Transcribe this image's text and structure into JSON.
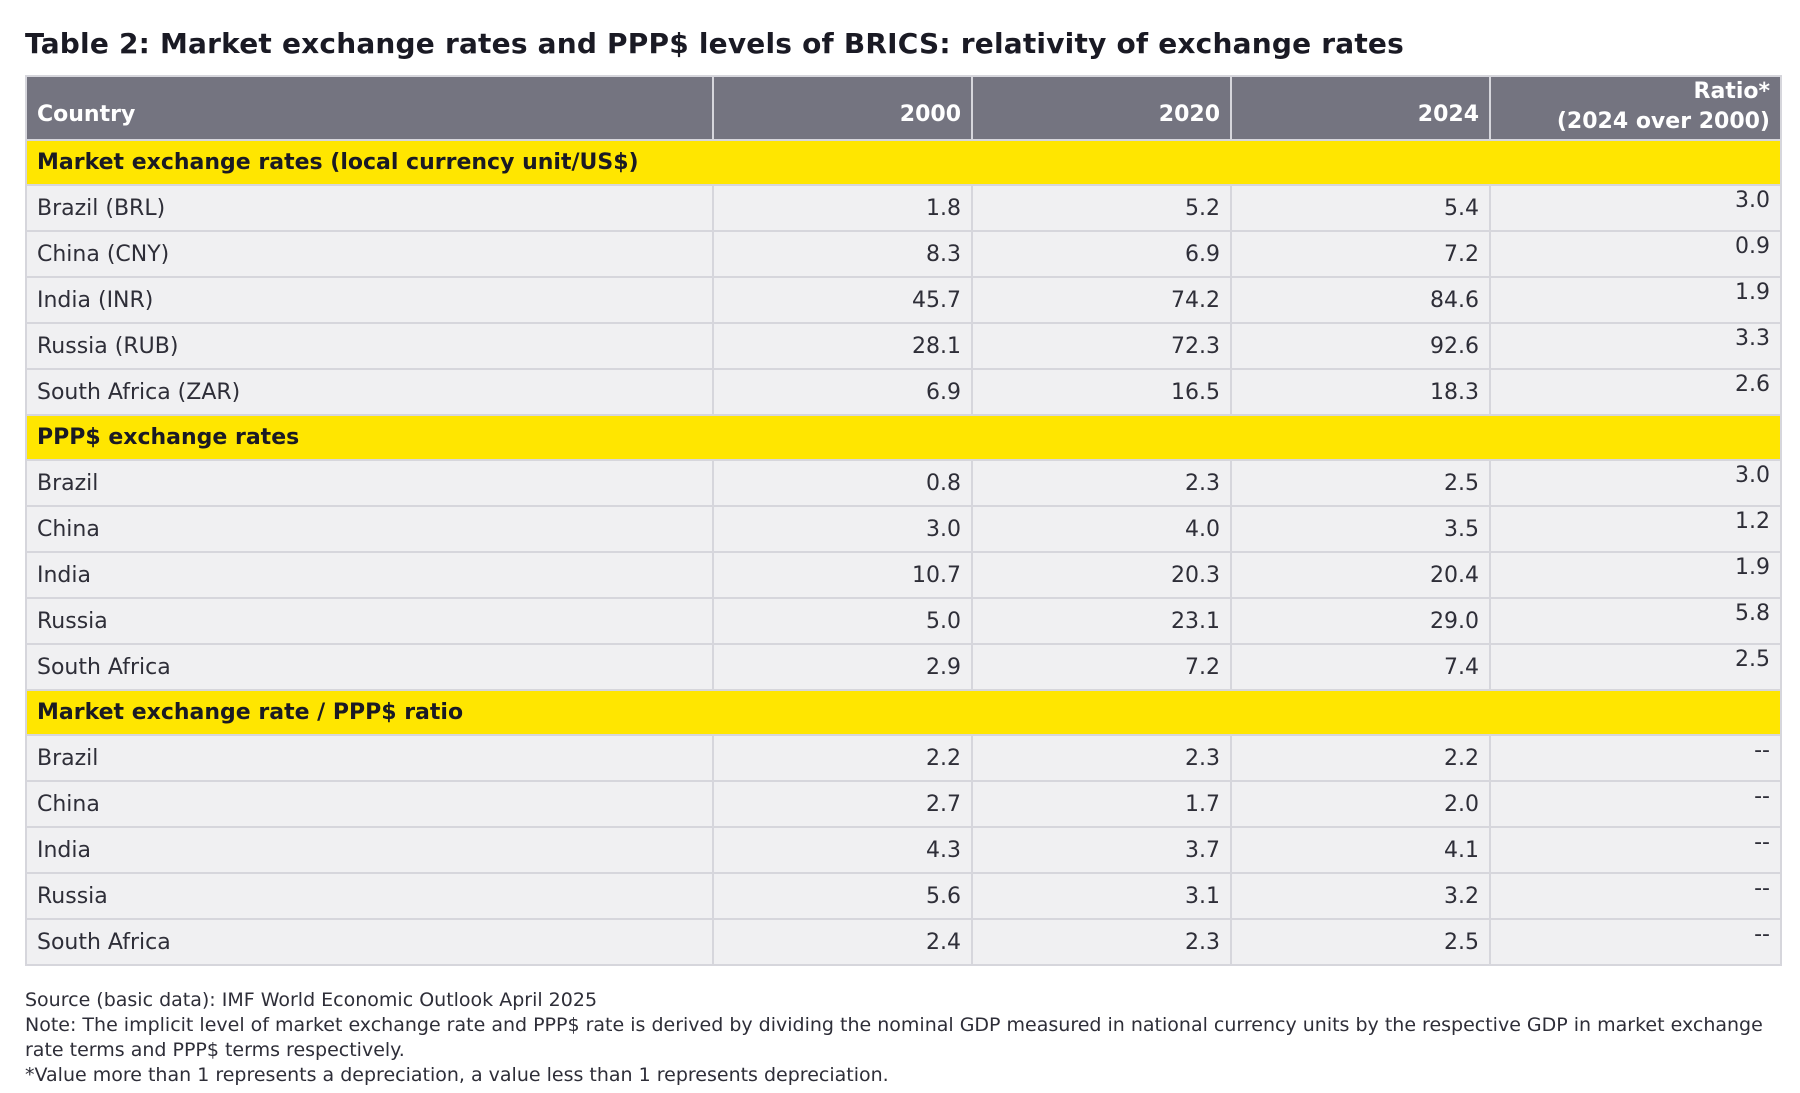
{
  "title": "Table 2: Market exchange rates and PPP$ levels of BRICS: relativity of exchange rates",
  "header": {
    "country": "Country",
    "y2000": "2000",
    "y2020": "2020",
    "y2024": "2024",
    "ratio_line1": "Ratio*",
    "ratio_line2": "(2024 over 2000)"
  },
  "sections": [
    {
      "title": "Market exchange rates (local currency unit/US$)",
      "rows": [
        {
          "country": "Brazil (BRL)",
          "v2000": "1.8",
          "v2020": "5.2",
          "v2024": "5.4",
          "ratio": "3.0"
        },
        {
          "country": "China (CNY)",
          "v2000": "8.3",
          "v2020": "6.9",
          "v2024": "7.2",
          "ratio": "0.9"
        },
        {
          "country": "India (INR)",
          "v2000": "45.7",
          "v2020": "74.2",
          "v2024": "84.6",
          "ratio": "1.9"
        },
        {
          "country": "Russia (RUB)",
          "v2000": "28.1",
          "v2020": "72.3",
          "v2024": "92.6",
          "ratio": "3.3"
        },
        {
          "country": "South Africa (ZAR)",
          "v2000": "6.9",
          "v2020": "16.5",
          "v2024": "18.3",
          "ratio": "2.6"
        }
      ]
    },
    {
      "title": "PPP$ exchange rates",
      "rows": [
        {
          "country": "Brazil",
          "v2000": "0.8",
          "v2020": "2.3",
          "v2024": "2.5",
          "ratio": "3.0"
        },
        {
          "country": "China",
          "v2000": "3.0",
          "v2020": "4.0",
          "v2024": "3.5",
          "ratio": "1.2"
        },
        {
          "country": "India",
          "v2000": "10.7",
          "v2020": "20.3",
          "v2024": "20.4",
          "ratio": "1.9"
        },
        {
          "country": "Russia",
          "v2000": "5.0",
          "v2020": "23.1",
          "v2024": "29.0",
          "ratio": "5.8"
        },
        {
          "country": "South Africa",
          "v2000": "2.9",
          "v2020": "7.2",
          "v2024": "7.4",
          "ratio": "2.5"
        }
      ]
    },
    {
      "title": "Market exchange rate / PPP$ ratio",
      "rows": [
        {
          "country": "Brazil",
          "v2000": "2.2",
          "v2020": "2.3",
          "v2024": "2.2",
          "ratio": "--"
        },
        {
          "country": "China",
          "v2000": "2.7",
          "v2020": "1.7",
          "v2024": "2.0",
          "ratio": "--"
        },
        {
          "country": "India",
          "v2000": "4.3",
          "v2020": "3.7",
          "v2024": "4.1",
          "ratio": "--"
        },
        {
          "country": "Russia",
          "v2000": "5.6",
          "v2020": "3.1",
          "v2024": "3.2",
          "ratio": "--"
        },
        {
          "country": "South Africa",
          "v2000": "2.4",
          "v2020": "2.3",
          "v2024": "2.5",
          "ratio": "--"
        }
      ]
    }
  ],
  "notes": {
    "source": "Source (basic data): IMF World Economic Outlook April 2025",
    "note": "Note: The implicit level of market exchange rate and PPP$ rate is derived by dividing the nominal GDP measured in national currency units by the respective GDP in market exchange rate terms and PPP$ terms respectively.",
    "footnote": "*Value more than 1 represents a depreciation, a value less than 1 represents depreciation."
  }
}
